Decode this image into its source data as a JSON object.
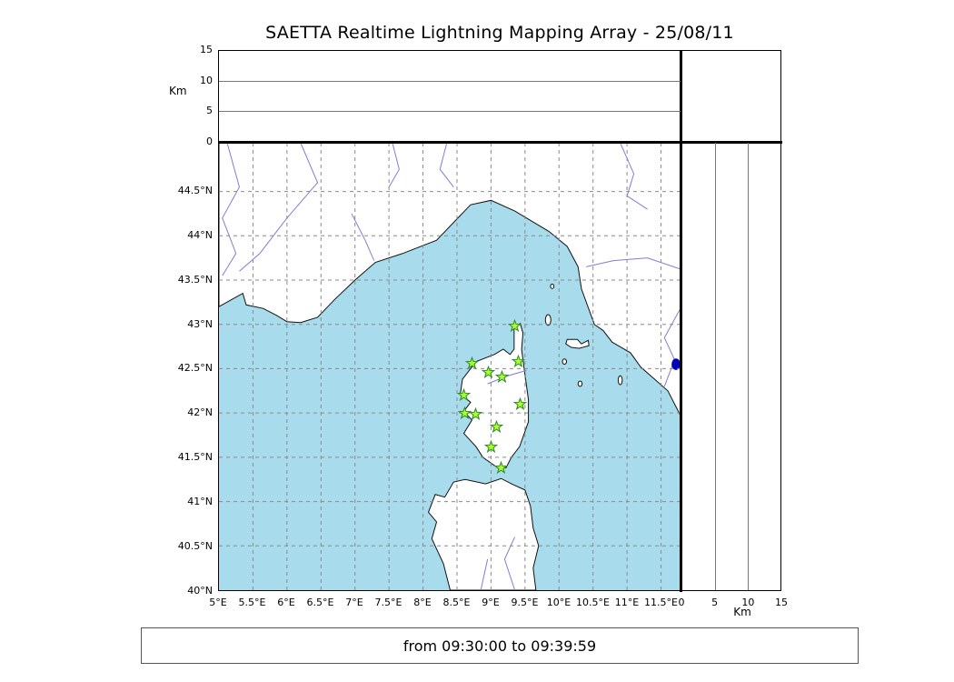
{
  "title": "SAETTA Realtime Lightning Mapping Array - 25/08/11",
  "footer_text": "from 09:30:00 to 09:39:59",
  "axes": {
    "km_label": "Km"
  },
  "colors": {
    "sea": "#a8dced",
    "land": "#ffffff",
    "coast": "#111111",
    "river": "#7e7ed4",
    "lake": "#0000bb",
    "grid": "#8a8a8a",
    "station_fill": "#adff2f",
    "station_edge": "#2f8f25"
  },
  "chart_data": {
    "type": "scatter",
    "title": "SAETTA Realtime Lightning Mapping Array - 25/08/11",
    "time_window": {
      "from": "09:30:00",
      "to": "09:39:59"
    },
    "map": {
      "lon_range": [
        5.0,
        11.8
      ],
      "lat_range": [
        40.0,
        45.05
      ],
      "grid": "dashed",
      "lon_ticks": [
        {
          "value": 5,
          "label": "5°E"
        },
        {
          "value": 5.5,
          "label": "5.5°E"
        },
        {
          "value": 6,
          "label": "6°E"
        },
        {
          "value": 6.5,
          "label": "6.5°E"
        },
        {
          "value": 7,
          "label": "7°E"
        },
        {
          "value": 7.5,
          "label": "7.5°E"
        },
        {
          "value": 8,
          "label": "8°E"
        },
        {
          "value": 8.5,
          "label": "8.5°E"
        },
        {
          "value": 9,
          "label": "9°E"
        },
        {
          "value": 9.5,
          "label": "9.5°E"
        },
        {
          "value": 10,
          "label": "10°E"
        },
        {
          "value": 10.5,
          "label": "10.5°E"
        },
        {
          "value": 11,
          "label": "11°E"
        },
        {
          "value": 11.5,
          "label": "11.5°E"
        }
      ],
      "lat_ticks": [
        {
          "value": 44.5,
          "label": "44.5°N"
        },
        {
          "value": 44,
          "label": "44°N"
        },
        {
          "value": 43.5,
          "label": "43.5°N"
        },
        {
          "value": 43,
          "label": "43°N"
        },
        {
          "value": 42.5,
          "label": "42.5°N"
        },
        {
          "value": 42,
          "label": "42°N"
        },
        {
          "value": 41.5,
          "label": "41.5°N"
        },
        {
          "value": 41,
          "label": "41°N"
        },
        {
          "value": 40.5,
          "label": "40.5°N"
        },
        {
          "value": 40,
          "label": "40°N"
        }
      ]
    },
    "altitude_axis": {
      "label": "Km",
      "range": [
        0,
        15
      ],
      "ticks": [
        0,
        5,
        10,
        15
      ],
      "gridlines": [
        5,
        10
      ]
    },
    "stations": [
      {
        "lon": 9.35,
        "lat": 42.98
      },
      {
        "lon": 8.72,
        "lat": 42.56
      },
      {
        "lon": 9.4,
        "lat": 42.58
      },
      {
        "lon": 8.96,
        "lat": 42.46
      },
      {
        "lon": 9.17,
        "lat": 42.41
      },
      {
        "lon": 8.6,
        "lat": 42.2
      },
      {
        "lon": 9.43,
        "lat": 42.1
      },
      {
        "lon": 8.62,
        "lat": 42.0
      },
      {
        "lon": 8.78,
        "lat": 41.99
      },
      {
        "lon": 9.09,
        "lat": 41.85
      },
      {
        "lon": 9.0,
        "lat": 41.62
      },
      {
        "lon": 9.15,
        "lat": 41.39
      }
    ],
    "lightning_points": []
  }
}
